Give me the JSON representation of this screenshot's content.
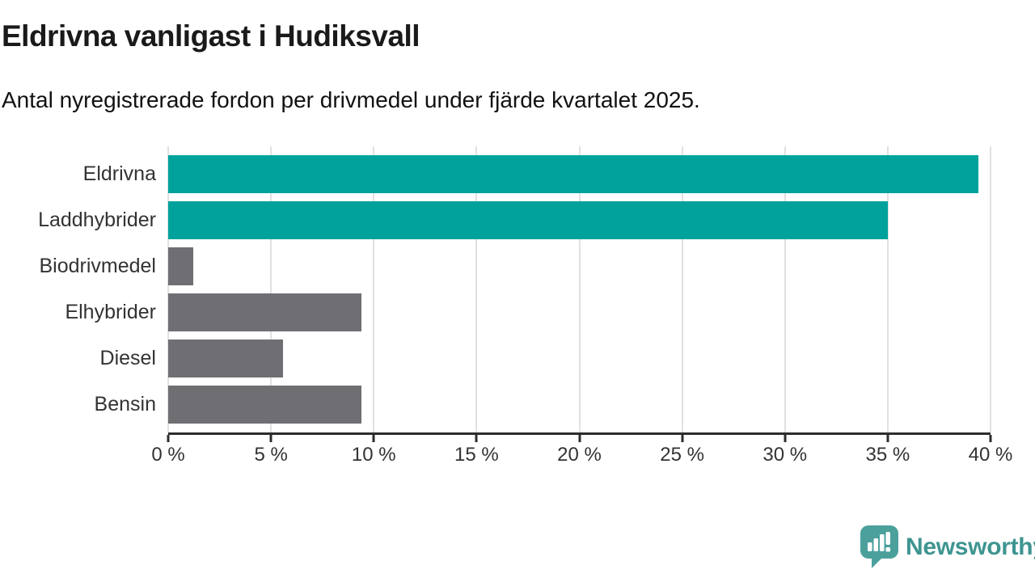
{
  "header": {
    "title": "Eldrivna vanligast i Hudiksvall",
    "subtitle": "Antal nyregistrerade fordon per drivmedel under fjärde kvartalet 2025."
  },
  "chart_data": {
    "type": "bar",
    "orientation": "horizontal",
    "title": "Eldrivna vanligast i Hudiksvall",
    "subtitle": "Antal nyregistrerade fordon per drivmedel under fjärde kvartalet 2025.",
    "categories": [
      "Eldrivna",
      "Laddhybrider",
      "Biodrivmedel",
      "Elhybrider",
      "Diesel",
      "Bensin"
    ],
    "values": [
      39.4,
      35.0,
      1.2,
      9.4,
      5.6,
      9.4
    ],
    "unit": "%",
    "xlabel": "",
    "ylabel": "",
    "xlim": [
      0,
      40
    ],
    "ticks": [
      0,
      5,
      10,
      15,
      20,
      25,
      30,
      35,
      40
    ],
    "tick_labels": [
      "0 %",
      "5 %",
      "10 %",
      "15 %",
      "20 %",
      "25 %",
      "30 %",
      "35 %",
      "40 %"
    ],
    "bar_colors": [
      "#00a29b",
      "#00a29b",
      "#6f6f73",
      "#6f6f73",
      "#6f6f73",
      "#6f6f73"
    ],
    "grid": true,
    "legend": "none"
  },
  "branding": {
    "logo_text": "Newsworthy",
    "logo_text_color": "#3e9490",
    "logo_icon_color": "#4ba09c"
  },
  "colors": {
    "highlight": "#00a29b",
    "neutral": "#6f6f73",
    "axis": "#2d2d2d",
    "gridline": "#e1e1e1",
    "label_text": "#333333",
    "title_text": "#1a1a1a"
  }
}
